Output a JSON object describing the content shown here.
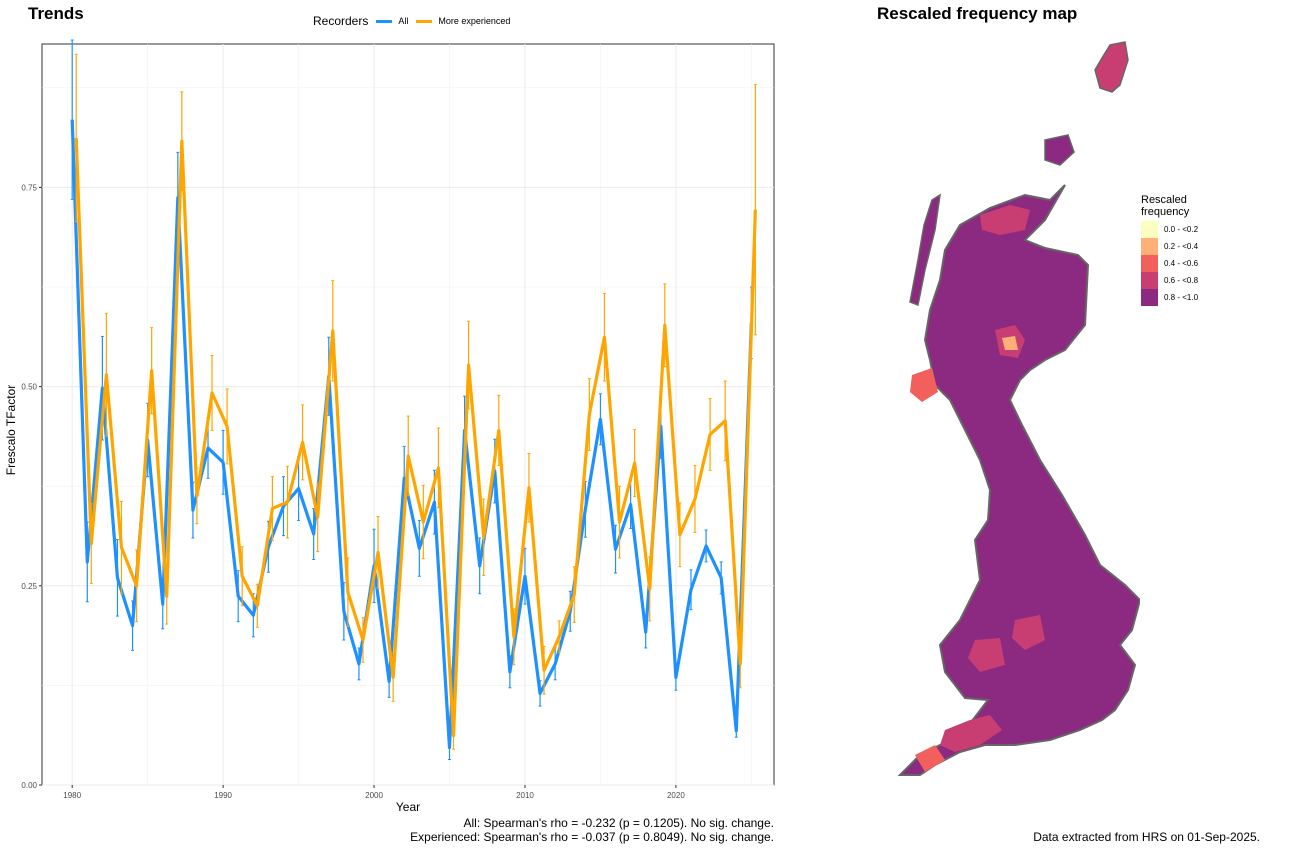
{
  "titles": {
    "trends": "Trends",
    "map": "Rescaled frequency map"
  },
  "legend": {
    "title": "Recorders",
    "items": [
      {
        "label": "All",
        "color": "#1E90FF"
      },
      {
        "label": "More experienced",
        "color": "#FFA500"
      }
    ]
  },
  "stats": {
    "line1": "All: Spearman's rho = -0.232 (p = 0.1205). No sig. change.",
    "line2": "Experienced: Spearman's rho = -0.037 (p = 0.8049). No sig. change."
  },
  "caption": "Data extracted from HRS on 01-Sep-2025.",
  "chart_data": {
    "type": "line",
    "xlabel": "Year",
    "ylabel": "Frescalo TFactor",
    "xlim": [
      1978,
      2026.5
    ],
    "ylim": [
      0,
      0.93
    ],
    "x_ticks": [
      "1980",
      "1990",
      "2000",
      "2010",
      "2020"
    ],
    "y_ticks": [
      "0.00",
      "0.25",
      "0.50",
      "0.75"
    ],
    "grid": true,
    "legend_position": "top",
    "x": [
      1980,
      1981,
      1982,
      1983,
      1984,
      1985,
      1986,
      1987,
      1988,
      1989,
      1990,
      1991,
      1992,
      1993,
      1994,
      1995,
      1996,
      1997,
      1998,
      1999,
      2000,
      2001,
      2002,
      2003,
      2004,
      2005,
      2006,
      2007,
      2008,
      2009,
      2010,
      2011,
      2012,
      2013,
      2014,
      2015,
      2016,
      2017,
      2018,
      2019,
      2020,
      2021,
      2022,
      2023,
      2024,
      2025
    ],
    "series": [
      {
        "name": "All",
        "color": "#1E90FF",
        "values": [
          0.835,
          0.28,
          0.498,
          0.26,
          0.2,
          0.433,
          0.227,
          0.737,
          0.345,
          0.423,
          0.405,
          0.237,
          0.213,
          0.299,
          0.35,
          0.372,
          0.315,
          0.513,
          0.218,
          0.152,
          0.275,
          0.13,
          0.385,
          0.297,
          0.355,
          0.047,
          0.445,
          0.275,
          0.394,
          0.142,
          0.262,
          0.115,
          0.152,
          0.218,
          0.346,
          0.459,
          0.296,
          0.352,
          0.192,
          0.45,
          0.135,
          0.245,
          0.3,
          0.26,
          0.068,
          0.58
        ],
        "err": [
          0.1,
          0.05,
          0.065,
          0.048,
          0.031,
          0.046,
          0.031,
          0.057,
          0.035,
          0.038,
          0.04,
          0.032,
          0.027,
          0.032,
          0.037,
          0.04,
          0.032,
          0.049,
          0.036,
          0.02,
          0.046,
          0.02,
          0.04,
          0.035,
          0.04,
          0.015,
          0.043,
          0.035,
          0.04,
          0.02,
          0.035,
          0.016,
          0.02,
          0.025,
          0.035,
          0.032,
          0.03,
          0.03,
          0.02,
          0.04,
          0.016,
          0.025,
          0.02,
          0.02,
          0.008,
          0.045
        ]
      },
      {
        "name": "More experienced",
        "color": "#FFA500",
        "values": [
          0.812,
          0.303,
          0.515,
          0.298,
          0.25,
          0.52,
          0.237,
          0.808,
          0.363,
          0.492,
          0.45,
          0.262,
          0.225,
          0.347,
          0.355,
          0.43,
          0.336,
          0.57,
          0.242,
          0.182,
          0.292,
          0.135,
          0.413,
          0.33,
          0.398,
          0.062,
          0.527,
          0.311,
          0.445,
          0.186,
          0.373,
          0.144,
          0.186,
          0.239,
          0.465,
          0.562,
          0.33,
          0.404,
          0.246,
          0.577,
          0.314,
          0.359,
          0.44,
          0.457,
          0.152,
          0.722
        ],
        "err": [
          0.105,
          0.05,
          0.077,
          0.058,
          0.045,
          0.054,
          0.035,
          0.062,
          0.035,
          0.047,
          0.047,
          0.037,
          0.027,
          0.04,
          0.045,
          0.047,
          0.043,
          0.063,
          0.043,
          0.028,
          0.045,
          0.03,
          0.05,
          0.046,
          0.05,
          0.017,
          0.055,
          0.048,
          0.044,
          0.035,
          0.043,
          0.03,
          0.02,
          0.035,
          0.045,
          0.055,
          0.045,
          0.042,
          0.04,
          0.052,
          0.04,
          0.042,
          0.045,
          0.05,
          0.03,
          0.157
        ]
      }
    ]
  },
  "map_legend": {
    "title_line1": "Rescaled",
    "title_line2": "frequency",
    "items": [
      {
        "label": "0.0 - <0.2",
        "color": "#FCFDBF"
      },
      {
        "label": "0.2 - <0.4",
        "color": "#FEB078"
      },
      {
        "label": "0.4 - <0.6",
        "color": "#F1605D"
      },
      {
        "label": "0.6 - <0.8",
        "color": "#C83E73"
      },
      {
        "label": "0.8 - <1.0",
        "color": "#8C2981"
      }
    ]
  }
}
